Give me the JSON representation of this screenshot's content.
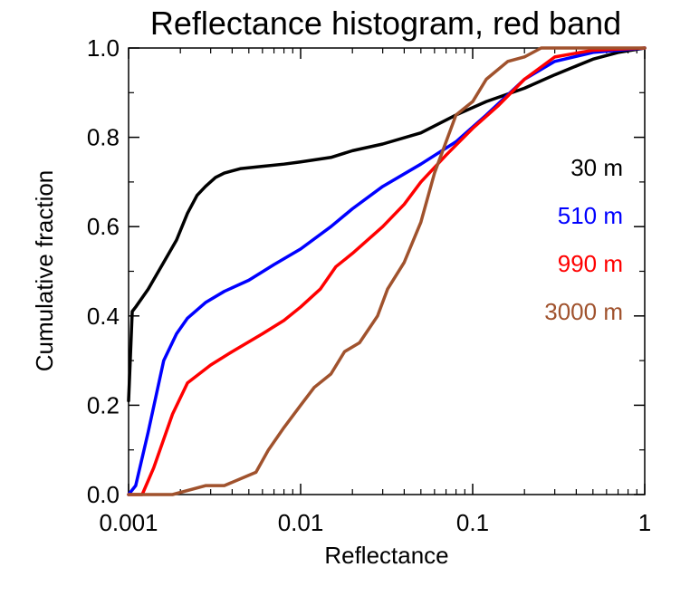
{
  "chart_data": {
    "type": "line",
    "title": "Reflectance histogram, red band",
    "xlabel": "Reflectance",
    "ylabel": "Cumulative fraction",
    "xscale": "log",
    "xlim": [
      0.001,
      1
    ],
    "ylim": [
      0,
      1
    ],
    "xticks": [
      0.001,
      0.01,
      0.1,
      1
    ],
    "xtick_labels": [
      "0.001",
      "0.01",
      "0.1",
      "1"
    ],
    "yticks": [
      0,
      0.2,
      0.4,
      0.6,
      0.8,
      1.0
    ],
    "ytick_labels": [
      "0.0",
      "0.2",
      "0.4",
      "0.6",
      "0.8",
      "1.0"
    ],
    "grid": false,
    "legend_position": "right",
    "series": [
      {
        "name": "30 m",
        "color": "#000000",
        "points": [
          [
            0.001,
            0.21
          ],
          [
            0.00105,
            0.41
          ],
          [
            0.0011,
            0.42
          ],
          [
            0.0013,
            0.46
          ],
          [
            0.0016,
            0.52
          ],
          [
            0.0019,
            0.57
          ],
          [
            0.0022,
            0.63
          ],
          [
            0.0025,
            0.67
          ],
          [
            0.0028,
            0.69
          ],
          [
            0.0032,
            0.71
          ],
          [
            0.0036,
            0.72
          ],
          [
            0.0045,
            0.73
          ],
          [
            0.006,
            0.735
          ],
          [
            0.008,
            0.74
          ],
          [
            0.01,
            0.745
          ],
          [
            0.015,
            0.755
          ],
          [
            0.02,
            0.77
          ],
          [
            0.03,
            0.785
          ],
          [
            0.05,
            0.81
          ],
          [
            0.08,
            0.85
          ],
          [
            0.12,
            0.88
          ],
          [
            0.2,
            0.91
          ],
          [
            0.3,
            0.94
          ],
          [
            0.5,
            0.975
          ],
          [
            0.7,
            0.99
          ],
          [
            1.0,
            1.0
          ]
        ]
      },
      {
        "name": "510 m",
        "color": "#0000ff",
        "points": [
          [
            0.001,
            0.0
          ],
          [
            0.0011,
            0.02
          ],
          [
            0.0013,
            0.14
          ],
          [
            0.0016,
            0.3
          ],
          [
            0.0019,
            0.36
          ],
          [
            0.0022,
            0.395
          ],
          [
            0.0028,
            0.43
          ],
          [
            0.0036,
            0.455
          ],
          [
            0.005,
            0.48
          ],
          [
            0.007,
            0.515
          ],
          [
            0.01,
            0.55
          ],
          [
            0.015,
            0.6
          ],
          [
            0.02,
            0.64
          ],
          [
            0.03,
            0.69
          ],
          [
            0.05,
            0.74
          ],
          [
            0.08,
            0.79
          ],
          [
            0.12,
            0.85
          ],
          [
            0.2,
            0.93
          ],
          [
            0.3,
            0.97
          ],
          [
            0.5,
            0.99
          ],
          [
            1.0,
            1.0
          ]
        ]
      },
      {
        "name": "990 m",
        "color": "#ff0000",
        "points": [
          [
            0.001,
            0.0
          ],
          [
            0.0012,
            0.0
          ],
          [
            0.0014,
            0.06
          ],
          [
            0.0018,
            0.18
          ],
          [
            0.0022,
            0.25
          ],
          [
            0.003,
            0.29
          ],
          [
            0.004,
            0.32
          ],
          [
            0.006,
            0.36
          ],
          [
            0.008,
            0.39
          ],
          [
            0.01,
            0.42
          ],
          [
            0.013,
            0.46
          ],
          [
            0.016,
            0.51
          ],
          [
            0.02,
            0.54
          ],
          [
            0.03,
            0.6
          ],
          [
            0.04,
            0.65
          ],
          [
            0.05,
            0.7
          ],
          [
            0.07,
            0.76
          ],
          [
            0.1,
            0.82
          ],
          [
            0.14,
            0.87
          ],
          [
            0.2,
            0.93
          ],
          [
            0.3,
            0.98
          ],
          [
            0.5,
            0.995
          ],
          [
            1.0,
            1.0
          ]
        ]
      },
      {
        "name": "3000 m",
        "color": "#a0522d",
        "points": [
          [
            0.001,
            0.0
          ],
          [
            0.0018,
            0.0
          ],
          [
            0.0028,
            0.02
          ],
          [
            0.0036,
            0.02
          ],
          [
            0.0055,
            0.05
          ],
          [
            0.0065,
            0.1
          ],
          [
            0.008,
            0.15
          ],
          [
            0.01,
            0.2
          ],
          [
            0.012,
            0.24
          ],
          [
            0.015,
            0.27
          ],
          [
            0.018,
            0.32
          ],
          [
            0.022,
            0.34
          ],
          [
            0.028,
            0.4
          ],
          [
            0.032,
            0.46
          ],
          [
            0.04,
            0.52
          ],
          [
            0.05,
            0.61
          ],
          [
            0.06,
            0.72
          ],
          [
            0.08,
            0.85
          ],
          [
            0.1,
            0.88
          ],
          [
            0.12,
            0.93
          ],
          [
            0.16,
            0.97
          ],
          [
            0.2,
            0.98
          ],
          [
            0.25,
            1.0
          ],
          [
            0.5,
            1.0
          ],
          [
            1.0,
            1.0
          ]
        ]
      }
    ]
  }
}
